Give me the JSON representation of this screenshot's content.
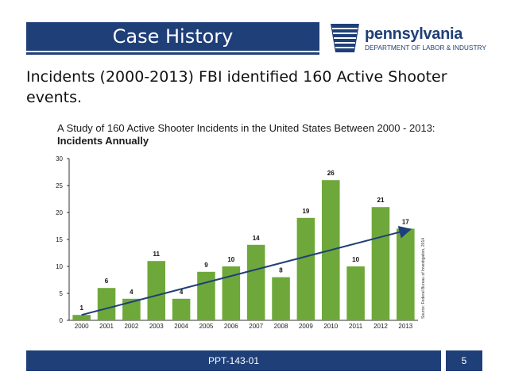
{
  "slide": {
    "title": "Case History",
    "body": "Incidents (2000-2013) FBI identified 160 Active Shooter events.",
    "footer_code": "PPT-143-01",
    "page_number": "5"
  },
  "logo": {
    "name": "pennsylvania",
    "subtitle": "DEPARTMENT OF LABOR & INDUSTRY"
  },
  "colors": {
    "brand": "#1f3f78",
    "bar": "#6fa83a",
    "trend": "#1f3f78"
  },
  "chart_data": {
    "type": "bar",
    "title": "A Study of 160 Active Shooter Incidents in the United States Between 2000 - 2013:",
    "subtitle": "Incidents Annually",
    "categories": [
      "2000",
      "2001",
      "2002",
      "2003",
      "2004",
      "2005",
      "2006",
      "2007",
      "2008",
      "2009",
      "2010",
      "2011",
      "2012",
      "2013"
    ],
    "values": [
      1,
      6,
      4,
      11,
      4,
      9,
      10,
      14,
      8,
      19,
      26,
      10,
      21,
      17
    ],
    "ylim": [
      0,
      30
    ],
    "yticks": [
      0,
      5,
      10,
      15,
      20,
      25,
      30
    ],
    "trendline": {
      "start": 1,
      "end": 16.8
    },
    "source": "Source: Federal Bureau of Investigation, 2014",
    "xlabel": "",
    "ylabel": ""
  }
}
